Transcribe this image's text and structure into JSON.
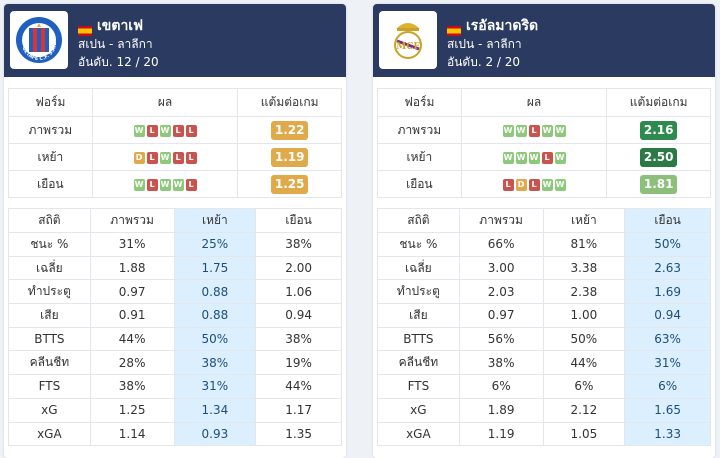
{
  "cards": [
    {
      "team_name": "เขตาเฟ",
      "flag": "spain-flag",
      "logo": "getafe-crest-icon",
      "logo_text": "GETAFE C.F. S.A.D.",
      "league": "สเปน - ลาลีกา",
      "rank": "อันดับ. 12 / 20",
      "form_headers": [
        "ฟอร์ม",
        "ผล",
        "แต้มต่อเกม"
      ],
      "form_rows": [
        {
          "label": "ภาพรวม",
          "results": [
            "W",
            "L",
            "W",
            "L",
            "L"
          ],
          "ppg": "1.22",
          "ppg_color": "#e0a94a"
        },
        {
          "label": "เหย้า",
          "results": [
            "D",
            "L",
            "W",
            "L",
            "L"
          ],
          "ppg": "1.19",
          "ppg_color": "#e0a94a"
        },
        {
          "label": "เยือน",
          "results": [
            "W",
            "L",
            "W",
            "W",
            "L"
          ],
          "ppg": "1.25",
          "ppg_color": "#e0a94a"
        }
      ],
      "stats_headers": [
        "สถิติ",
        "ภาพรวม",
        "เหย้า",
        "เยือน"
      ],
      "highlight_col": 2,
      "stats_rows": [
        {
          "label": "ชนะ %",
          "values": [
            "31%",
            "25%",
            "38%"
          ]
        },
        {
          "label": "เฉลี่ย",
          "values": [
            "1.88",
            "1.75",
            "2.00"
          ]
        },
        {
          "label": "ทำประตู",
          "values": [
            "0.97",
            "0.88",
            "1.06"
          ]
        },
        {
          "label": "เสีย",
          "values": [
            "0.91",
            "0.88",
            "0.94"
          ]
        },
        {
          "label": "BTTS",
          "values": [
            "44%",
            "50%",
            "38%"
          ]
        },
        {
          "label": "คลีนชีท",
          "values": [
            "28%",
            "38%",
            "19%"
          ]
        },
        {
          "label": "FTS",
          "values": [
            "38%",
            "31%",
            "44%"
          ]
        },
        {
          "label": "xG",
          "values": [
            "1.25",
            "1.34",
            "1.17"
          ]
        },
        {
          "label": "xGA",
          "values": [
            "1.14",
            "0.93",
            "1.35"
          ]
        }
      ]
    },
    {
      "team_name": "เรอัลมาดริด",
      "flag": "spain-flag",
      "logo": "real-madrid-crest-icon",
      "logo_text": "",
      "league": "สเปน - ลาลีกา",
      "rank": "อันดับ. 2 / 20",
      "form_headers": [
        "ฟอร์ม",
        "ผล",
        "แต้มต่อเกม"
      ],
      "form_rows": [
        {
          "label": "ภาพรวม",
          "results": [
            "W",
            "W",
            "L",
            "W",
            "W"
          ],
          "ppg": "2.16",
          "ppg_color": "#2e8b4e"
        },
        {
          "label": "เหย้า",
          "results": [
            "W",
            "W",
            "W",
            "L",
            "W"
          ],
          "ppg": "2.50",
          "ppg_color": "#2a7a45"
        },
        {
          "label": "เยือน",
          "results": [
            "L",
            "D",
            "L",
            "W",
            "W"
          ],
          "ppg": "1.81",
          "ppg_color": "#8cbf7a"
        }
      ],
      "stats_headers": [
        "สถิติ",
        "ภาพรวม",
        "เหย้า",
        "เยือน"
      ],
      "highlight_col": 3,
      "stats_rows": [
        {
          "label": "ชนะ %",
          "values": [
            "66%",
            "81%",
            "50%"
          ]
        },
        {
          "label": "เฉลี่ย",
          "values": [
            "3.00",
            "3.38",
            "2.63"
          ]
        },
        {
          "label": "ทำประตู",
          "values": [
            "2.03",
            "2.38",
            "1.69"
          ]
        },
        {
          "label": "เสีย",
          "values": [
            "0.97",
            "1.00",
            "0.94"
          ]
        },
        {
          "label": "BTTS",
          "values": [
            "56%",
            "50%",
            "63%"
          ]
        },
        {
          "label": "คลีนชีท",
          "values": [
            "38%",
            "44%",
            "31%"
          ]
        },
        {
          "label": "FTS",
          "values": [
            "6%",
            "6%",
            "6%"
          ]
        },
        {
          "label": "xG",
          "values": [
            "1.89",
            "2.12",
            "1.65"
          ]
        },
        {
          "label": "xGA",
          "values": [
            "1.19",
            "1.05",
            "1.33"
          ]
        }
      ]
    }
  ],
  "result_colors": {
    "W": "#8dc97a",
    "L": "#c9534f",
    "D": "#e0a94a"
  }
}
